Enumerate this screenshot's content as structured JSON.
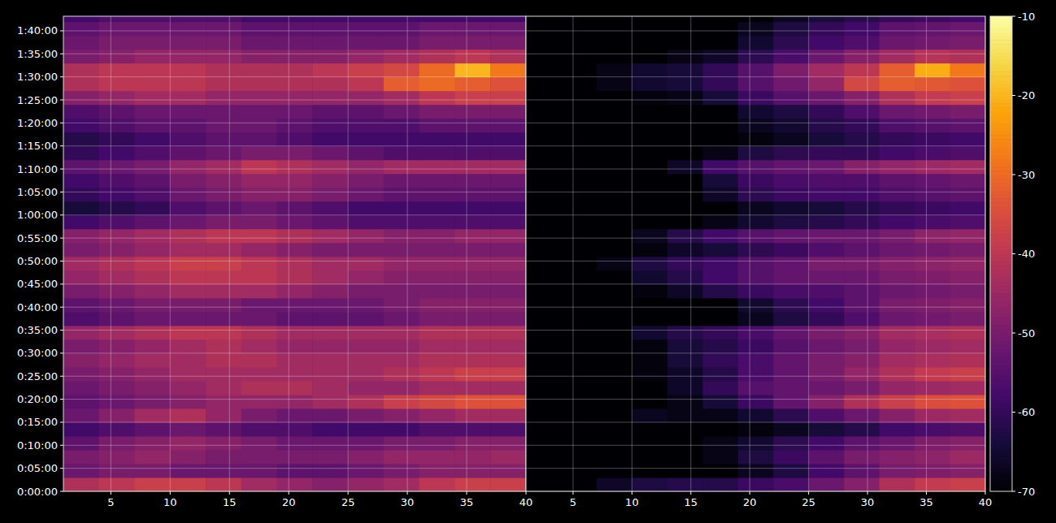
{
  "chart_data": [
    {
      "type": "heatmap",
      "grid": true,
      "tick_labels": true,
      "xlim": [
        1,
        40
      ],
      "xticks": [
        5,
        10,
        15,
        20,
        25,
        30,
        35,
        40
      ],
      "ylim": [
        0,
        6190
      ],
      "yticks": [
        {
          "value": 0,
          "label": "0:00:00"
        },
        {
          "value": 300,
          "label": "0:05:00"
        },
        {
          "value": 600,
          "label": "0:10:00"
        },
        {
          "value": 900,
          "label": "0:15:00"
        },
        {
          "value": 1200,
          "label": "0:20:00"
        },
        {
          "value": 1500,
          "label": "0:25:00"
        },
        {
          "value": 1800,
          "label": "0:30:00"
        },
        {
          "value": 2100,
          "label": "0:35:00"
        },
        {
          "value": 2400,
          "label": "0:40:00"
        },
        {
          "value": 2700,
          "label": "0:45:00"
        },
        {
          "value": 3000,
          "label": "0:50:00"
        },
        {
          "value": 3300,
          "label": "0:55:00"
        },
        {
          "value": 3600,
          "label": "1:00:00"
        },
        {
          "value": 3900,
          "label": "1:05:00"
        },
        {
          "value": 4200,
          "label": "1:10:00"
        },
        {
          "value": 4500,
          "label": "1:15:00"
        },
        {
          "value": 4800,
          "label": "1:20:00"
        },
        {
          "value": 5100,
          "label": "1:25:00"
        },
        {
          "value": 5400,
          "label": "1:30:00"
        },
        {
          "value": 5700,
          "label": "1:35:00"
        },
        {
          "value": 6000,
          "label": "1:40:00"
        }
      ],
      "x_edges": [
        1,
        4,
        7,
        10,
        13,
        16,
        19,
        22,
        25,
        28,
        31,
        34,
        37,
        40
      ],
      "y_edges": [
        0,
        180,
        360,
        540,
        720,
        900,
        1080,
        1260,
        1440,
        1620,
        1800,
        1980,
        2160,
        2340,
        2520,
        2700,
        2880,
        3060,
        3240,
        3420,
        3600,
        3780,
        3960,
        4140,
        4320,
        4500,
        4680,
        4860,
        5040,
        5220,
        5400,
        5580,
        5760,
        5940,
        6120,
        6190
      ],
      "values": [
        [
          -42,
          -40,
          -38,
          -38,
          -40,
          -44,
          -46,
          -48,
          -46,
          -44,
          -40,
          -38,
          -38
        ],
        [
          -52,
          -50,
          -50,
          -52,
          -52,
          -52,
          -54,
          -54,
          -52,
          -50,
          -48,
          -48,
          -48
        ],
        [
          -50,
          -48,
          -46,
          -48,
          -50,
          -50,
          -50,
          -50,
          -48,
          -46,
          -46,
          -46,
          -45
        ],
        [
          -54,
          -50,
          -48,
          -46,
          -48,
          -50,
          -52,
          -52,
          -52,
          -50,
          -50,
          -48,
          -48
        ],
        [
          -58,
          -56,
          -54,
          -52,
          -54,
          -56,
          -56,
          -58,
          -58,
          -58,
          -56,
          -56,
          -56
        ],
        [
          -52,
          -48,
          -44,
          -42,
          -46,
          -50,
          -52,
          -52,
          -50,
          -48,
          -46,
          -44,
          -44
        ],
        [
          -54,
          -52,
          -50,
          -48,
          -46,
          -46,
          -46,
          -44,
          -42,
          -38,
          -36,
          -34,
          -34
        ],
        [
          -52,
          -50,
          -48,
          -46,
          -44,
          -42,
          -42,
          -44,
          -46,
          -46,
          -44,
          -44,
          -44
        ],
        [
          -50,
          -48,
          -46,
          -44,
          -44,
          -44,
          -44,
          -44,
          -44,
          -42,
          -40,
          -38,
          -38
        ],
        [
          -48,
          -46,
          -44,
          -44,
          -42,
          -42,
          -44,
          -44,
          -44,
          -44,
          -42,
          -42,
          -42
        ],
        [
          -50,
          -48,
          -46,
          -44,
          -42,
          -44,
          -46,
          -46,
          -46,
          -46,
          -44,
          -44,
          -44
        ],
        [
          -46,
          -44,
          -42,
          -40,
          -40,
          -42,
          -44,
          -44,
          -44,
          -44,
          -42,
          -42,
          -42
        ],
        [
          -56,
          -54,
          -52,
          -52,
          -52,
          -52,
          -54,
          -54,
          -54,
          -52,
          -50,
          -50,
          -50
        ],
        [
          -54,
          -52,
          -50,
          -50,
          -50,
          -52,
          -52,
          -52,
          -52,
          -50,
          -48,
          -48,
          -48
        ],
        [
          -50,
          -48,
          -46,
          -44,
          -44,
          -44,
          -46,
          -48,
          -50,
          -50,
          -50,
          -50,
          -50
        ],
        [
          -46,
          -44,
          -42,
          -40,
          -40,
          -40,
          -42,
          -44,
          -46,
          -48,
          -48,
          -48,
          -48
        ],
        [
          -44,
          -42,
          -40,
          -38,
          -38,
          -40,
          -42,
          -44,
          -44,
          -46,
          -46,
          -46,
          -46
        ],
        [
          -50,
          -48,
          -46,
          -44,
          -44,
          -46,
          -48,
          -50,
          -50,
          -50,
          -50,
          -50,
          -50
        ],
        [
          -48,
          -46,
          -44,
          -42,
          -40,
          -40,
          -42,
          -44,
          -46,
          -48,
          -48,
          -46,
          -46
        ],
        [
          -58,
          -56,
          -54,
          -52,
          -50,
          -50,
          -52,
          -54,
          -56,
          -56,
          -56,
          -56,
          -56
        ],
        [
          -64,
          -62,
          -60,
          -56,
          -54,
          -52,
          -54,
          -56,
          -58,
          -58,
          -58,
          -58,
          -58
        ],
        [
          -60,
          -58,
          -56,
          -52,
          -50,
          -48,
          -48,
          -50,
          -52,
          -54,
          -54,
          -54,
          -54
        ],
        [
          -58,
          -56,
          -54,
          -50,
          -48,
          -46,
          -46,
          -48,
          -50,
          -52,
          -52,
          -52,
          -52
        ],
        [
          -54,
          -52,
          -50,
          -46,
          -44,
          -40,
          -42,
          -44,
          -46,
          -44,
          -44,
          -44,
          -44
        ],
        [
          -60,
          -58,
          -56,
          -54,
          -52,
          -50,
          -50,
          -52,
          -54,
          -56,
          -56,
          -56,
          -56
        ],
        [
          -62,
          -60,
          -58,
          -56,
          -54,
          -54,
          -56,
          -58,
          -58,
          -58,
          -58,
          -58,
          -58
        ],
        [
          -58,
          -56,
          -54,
          -54,
          -52,
          -52,
          -54,
          -56,
          -56,
          -56,
          -54,
          -54,
          -54
        ],
        [
          -56,
          -54,
          -52,
          -52,
          -52,
          -52,
          -52,
          -54,
          -54,
          -52,
          -50,
          -50,
          -50
        ],
        [
          -48,
          -46,
          -44,
          -44,
          -46,
          -46,
          -46,
          -46,
          -46,
          -44,
          -40,
          -38,
          -38
        ],
        [
          -42,
          -40,
          -40,
          -40,
          -42,
          -42,
          -42,
          -42,
          -40,
          -32,
          -30,
          -32,
          -34
        ],
        [
          -42,
          -40,
          -40,
          -40,
          -42,
          -42,
          -42,
          -40,
          -38,
          -36,
          -30,
          -20,
          -28
        ],
        [
          -50,
          -48,
          -46,
          -46,
          -46,
          -48,
          -48,
          -48,
          -46,
          -44,
          -42,
          -40,
          -42
        ],
        [
          -52,
          -50,
          -50,
          -50,
          -50,
          -52,
          -52,
          -52,
          -52,
          -52,
          -50,
          -50,
          -50
        ],
        [
          -54,
          -52,
          -52,
          -52,
          -52,
          -54,
          -54,
          -54,
          -54,
          -54,
          -52,
          -52,
          -52
        ],
        [
          -58,
          -56,
          -56,
          -56,
          -56,
          -58,
          -58,
          -58,
          -58,
          -58,
          -58,
          -58,
          -58
        ]
      ]
    },
    {
      "type": "heatmap",
      "grid": true,
      "tick_labels": "x",
      "xlim": [
        1,
        40
      ],
      "xticks": [
        5,
        10,
        15,
        20,
        25,
        30,
        35,
        40
      ],
      "ylim": [
        0,
        6190
      ],
      "yticks": [
        0,
        300,
        600,
        900,
        1200,
        1500,
        1800,
        2100,
        2400,
        2700,
        3000,
        3300,
        3600,
        3900,
        4200,
        4500,
        4800,
        5100,
        5400,
        5700,
        6000
      ],
      "x_edges": [
        1,
        4,
        7,
        10,
        13,
        16,
        19,
        22,
        25,
        28,
        31,
        34,
        37,
        40
      ],
      "y_edges": [
        0,
        180,
        360,
        540,
        720,
        900,
        1080,
        1260,
        1440,
        1620,
        1800,
        1980,
        2160,
        2340,
        2520,
        2700,
        2880,
        3060,
        3240,
        3420,
        3600,
        3780,
        3960,
        4140,
        4320,
        4500,
        4680,
        4860,
        5040,
        5220,
        5400,
        5580,
        5760,
        5940,
        6120,
        6190
      ],
      "values": [
        [
          -70,
          -70,
          -66,
          -63,
          -62,
          -62,
          -59,
          -57,
          -52,
          -48,
          -42,
          -39,
          -38
        ],
        [
          -70,
          -70,
          -70,
          -70,
          -70,
          -70,
          -67,
          -63,
          -58,
          -54,
          -50,
          -49,
          -48
        ],
        [
          -70,
          -70,
          -70,
          -70,
          -70,
          -68,
          -63,
          -59,
          -54,
          -50,
          -48,
          -47,
          -45
        ],
        [
          -70,
          -70,
          -70,
          -70,
          -70,
          -68,
          -65,
          -61,
          -58,
          -54,
          -52,
          -49,
          -48
        ],
        [
          -70,
          -70,
          -70,
          -70,
          -70,
          -70,
          -69,
          -67,
          -64,
          -62,
          -58,
          -57,
          -56
        ],
        [
          -70,
          -70,
          -70,
          -67,
          -68,
          -68,
          -65,
          -61,
          -56,
          -52,
          -48,
          -45,
          -44
        ],
        [
          -70,
          -70,
          -70,
          -70,
          -68,
          -64,
          -59,
          -53,
          -48,
          -42,
          -38,
          -35,
          -34
        ],
        [
          -70,
          -70,
          -70,
          -70,
          -66,
          -60,
          -55,
          -53,
          -52,
          -50,
          -46,
          -45,
          -44
        ],
        [
          -70,
          -70,
          -70,
          -69,
          -66,
          -62,
          -57,
          -53,
          -50,
          -46,
          -42,
          -39,
          -38
        ],
        [
          -70,
          -70,
          -70,
          -69,
          -64,
          -60,
          -57,
          -53,
          -50,
          -48,
          -44,
          -43,
          -42
        ],
        [
          -70,
          -70,
          -70,
          -69,
          -64,
          -62,
          -59,
          -55,
          -52,
          -50,
          -46,
          -45,
          -44
        ],
        [
          -70,
          -70,
          -70,
          -65,
          -62,
          -60,
          -57,
          -53,
          -50,
          -48,
          -44,
          -43,
          -42
        ],
        [
          -70,
          -70,
          -70,
          -70,
          -70,
          -70,
          -67,
          -63,
          -60,
          -56,
          -52,
          -51,
          -50
        ],
        [
          -70,
          -70,
          -70,
          -70,
          -70,
          -70,
          -65,
          -61,
          -58,
          -54,
          -50,
          -49,
          -48
        ],
        [
          -70,
          -70,
          -70,
          -69,
          -66,
          -62,
          -59,
          -57,
          -56,
          -54,
          -52,
          -51,
          -50
        ],
        [
          -70,
          -70,
          -70,
          -65,
          -62,
          -58,
          -55,
          -53,
          -52,
          -52,
          -50,
          -49,
          -48
        ],
        [
          -70,
          -70,
          -68,
          -63,
          -60,
          -58,
          -55,
          -53,
          -50,
          -50,
          -48,
          -47,
          -46
        ],
        [
          -70,
          -70,
          -70,
          -69,
          -66,
          -64,
          -61,
          -59,
          -56,
          -54,
          -52,
          -51,
          -50
        ],
        [
          -70,
          -70,
          -70,
          -67,
          -62,
          -58,
          -55,
          -53,
          -52,
          -52,
          -50,
          -47,
          -46
        ],
        [
          -70,
          -70,
          -70,
          -70,
          -70,
          -68,
          -65,
          -63,
          -62,
          -60,
          -58,
          -57,
          -56
        ],
        [
          -70,
          -70,
          -70,
          -70,
          -70,
          -70,
          -67,
          -65,
          -64,
          -62,
          -60,
          -59,
          -58
        ],
        [
          -70,
          -70,
          -70,
          -70,
          -70,
          -66,
          -61,
          -59,
          -58,
          -58,
          -56,
          -55,
          -54
        ],
        [
          -70,
          -70,
          -70,
          -70,
          -70,
          -64,
          -59,
          -57,
          -56,
          -56,
          -54,
          -53,
          -52
        ],
        [
          -70,
          -70,
          -70,
          -70,
          -66,
          -58,
          -55,
          -53,
          -52,
          -48,
          -46,
          -45,
          -44
        ],
        [
          -70,
          -70,
          -70,
          -70,
          -70,
          -68,
          -63,
          -61,
          -60,
          -60,
          -58,
          -57,
          -56
        ],
        [
          -70,
          -70,
          -70,
          -70,
          -70,
          -70,
          -69,
          -67,
          -64,
          -62,
          -60,
          -59,
          -58
        ],
        [
          -70,
          -70,
          -70,
          -70,
          -70,
          -70,
          -67,
          -65,
          -62,
          -60,
          -56,
          -55,
          -54
        ],
        [
          -70,
          -70,
          -70,
          -70,
          -70,
          -70,
          -65,
          -63,
          -60,
          -56,
          -52,
          -51,
          -50
        ],
        [
          -70,
          -70,
          -70,
          -69,
          -68,
          -64,
          -59,
          -55,
          -52,
          -48,
          -42,
          -39,
          -38
        ],
        [
          -70,
          -70,
          -68,
          -65,
          -64,
          -60,
          -55,
          -51,
          -46,
          -36,
          -32,
          -33,
          -34
        ],
        [
          -70,
          -70,
          -68,
          -65,
          -64,
          -60,
          -55,
          -49,
          -44,
          -40,
          -32,
          -21,
          -28
        ],
        [
          -70,
          -70,
          -70,
          -70,
          -68,
          -66,
          -61,
          -57,
          -52,
          -48,
          -44,
          -41,
          -42
        ],
        [
          -70,
          -70,
          -70,
          -70,
          -70,
          -70,
          -65,
          -61,
          -58,
          -56,
          -52,
          -51,
          -50
        ],
        [
          -70,
          -70,
          -70,
          -70,
          -70,
          -70,
          -67,
          -63,
          -60,
          -58,
          -54,
          -53,
          -52
        ],
        [
          -70,
          -70,
          -70,
          -70,
          -70,
          -70,
          -70,
          -67,
          -64,
          -62,
          -60,
          -59,
          -58
        ]
      ],
      "colorbar": {
        "range": [
          -70,
          -10
        ],
        "ticks": [
          -70,
          -60,
          -50,
          -40,
          -30,
          -20,
          -10
        ]
      }
    }
  ]
}
